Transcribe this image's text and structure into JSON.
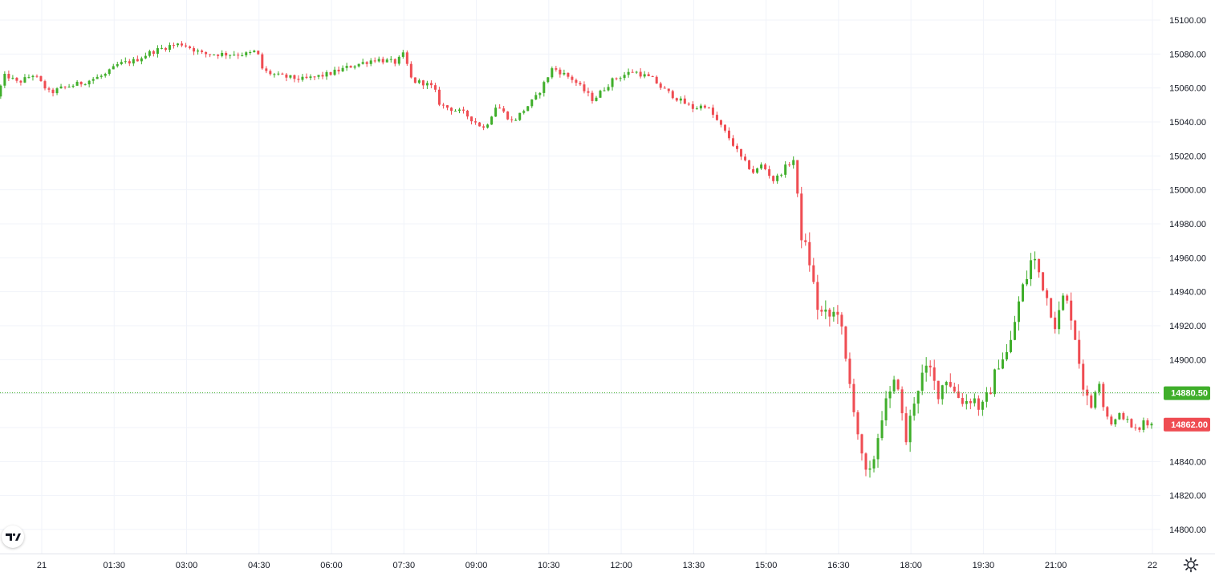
{
  "chart_data": {
    "type": "candlestick",
    "y_axis": {
      "ticks": [
        "15100.00",
        "15080.00",
        "15060.00",
        "15040.00",
        "15020.00",
        "15000.00",
        "14980.00",
        "14960.00",
        "14940.00",
        "14920.00",
        "14900.00",
        "14880.00",
        "14860.00",
        "14840.00",
        "14820.00",
        "14800.00"
      ],
      "tick_values": [
        15100,
        15080,
        15060,
        15040,
        15020,
        15000,
        14980,
        14960,
        14940,
        14920,
        14900,
        14880,
        14860,
        14840,
        14820,
        14800
      ],
      "range": [
        14790,
        15105
      ]
    },
    "x_axis": {
      "ticks": [
        "21",
        "01:30",
        "03:00",
        "04:30",
        "06:00",
        "07:30",
        "09:00",
        "10:30",
        "12:00",
        "13:30",
        "15:00",
        "16:30",
        "18:00",
        "19:30",
        "21:00",
        "22"
      ],
      "tick_minutes": [
        0,
        90,
        180,
        270,
        360,
        450,
        540,
        630,
        720,
        810,
        900,
        990,
        1080,
        1170,
        1260,
        1380
      ],
      "range_minutes": [
        -51,
        1397
      ]
    },
    "grid": true,
    "current_price": {
      "label": "14862.00",
      "value": 14862,
      "color": "#ef4c52"
    },
    "marker_price": {
      "label": "14880.50",
      "value": 14880.5,
      "color": "#3fae2a",
      "line_style": "dotted"
    },
    "colors": {
      "up": "#3fae2a",
      "down": "#ef4c52",
      "grid": "#f0f3fa",
      "axis_text": "#131722"
    },
    "keypoints": [
      [
        -51,
        15055,
        "s"
      ],
      [
        -40,
        15068,
        "s"
      ],
      [
        -25,
        15063,
        "s"
      ],
      [
        -5,
        15068,
        "s"
      ],
      [
        15,
        15057,
        "s"
      ],
      [
        30,
        15060,
        "s"
      ],
      [
        55,
        15063,
        "s"
      ],
      [
        85,
        15068,
        "s"
      ],
      [
        100,
        15074,
        "s"
      ],
      [
        120,
        15076,
        "s"
      ],
      [
        140,
        15081,
        "s"
      ],
      [
        165,
        15085,
        "s"
      ],
      [
        180,
        15086,
        "s"
      ],
      [
        205,
        15080,
        "s"
      ],
      [
        235,
        15080,
        "s"
      ],
      [
        262,
        15080,
        "s"
      ],
      [
        272,
        15082,
        "s"
      ],
      [
        280,
        15070,
        "s"
      ],
      [
        300,
        15067,
        "s"
      ],
      [
        330,
        15065,
        "s"
      ],
      [
        360,
        15068,
        "s"
      ],
      [
        390,
        15073,
        "s"
      ],
      [
        420,
        15077,
        "s"
      ],
      [
        445,
        15075,
        "s"
      ],
      [
        455,
        15080,
        "s"
      ],
      [
        465,
        15064,
        "s"
      ],
      [
        480,
        15063,
        "s"
      ],
      [
        492,
        15060,
        "s"
      ],
      [
        500,
        15050,
        "s"
      ],
      [
        530,
        15045,
        "s"
      ],
      [
        555,
        15036,
        "s"
      ],
      [
        570,
        15050,
        "s"
      ],
      [
        590,
        15040,
        "s"
      ],
      [
        620,
        15055,
        "s"
      ],
      [
        640,
        15072,
        "s"
      ],
      [
        665,
        15065,
        "s"
      ],
      [
        690,
        15053,
        "s"
      ],
      [
        715,
        15065,
        "s"
      ],
      [
        740,
        15070,
        "s"
      ],
      [
        765,
        15065,
        "s"
      ],
      [
        775,
        15060,
        "s"
      ],
      [
        800,
        15052,
        "s"
      ],
      [
        815,
        15048,
        "s"
      ],
      [
        830,
        15050,
        "s"
      ],
      [
        845,
        15040,
        "s"
      ],
      [
        860,
        15030,
        "s"
      ],
      [
        875,
        15018,
        "s"
      ],
      [
        890,
        15010,
        "s"
      ],
      [
        900,
        15015,
        "s"
      ],
      [
        915,
        15005,
        "s"
      ],
      [
        930,
        15014,
        "s"
      ],
      [
        940,
        15018,
        "s"
      ],
      [
        948,
        14975,
        "s"
      ],
      [
        958,
        14960,
        "s"
      ],
      [
        970,
        14928,
        "s"
      ],
      [
        985,
        14925,
        "s"
      ],
      [
        995,
        14930,
        "s"
      ],
      [
        1005,
        14895,
        "s"
      ],
      [
        1015,
        14870,
        "s"
      ],
      [
        1025,
        14838,
        "s"
      ],
      [
        1032,
        14828,
        "s"
      ],
      [
        1040,
        14845,
        "s"
      ],
      [
        1050,
        14870,
        "s"
      ],
      [
        1060,
        14880,
        "s"
      ],
      [
        1068,
        14890,
        "s"
      ],
      [
        1078,
        14850,
        "s"
      ],
      [
        1088,
        14875,
        "s"
      ],
      [
        1098,
        14890,
        "s"
      ],
      [
        1108,
        14895,
        "s"
      ],
      [
        1118,
        14880,
        "s"
      ],
      [
        1130,
        14890,
        "s"
      ],
      [
        1140,
        14880,
        "s"
      ],
      [
        1152,
        14875,
        "s"
      ],
      [
        1162,
        14878,
        "s"
      ],
      [
        1172,
        14870,
        "s"
      ],
      [
        1182,
        14880,
        "s"
      ],
      [
        1195,
        14900,
        "s"
      ],
      [
        1207,
        14905,
        "s"
      ],
      [
        1215,
        14925,
        "s"
      ],
      [
        1222,
        14940,
        "s"
      ],
      [
        1230,
        14950,
        "s"
      ],
      [
        1236,
        14962,
        "s"
      ],
      [
        1245,
        14950,
        "s"
      ],
      [
        1255,
        14935,
        "s"
      ],
      [
        1265,
        14920,
        "s"
      ],
      [
        1275,
        14938,
        "s"
      ],
      [
        1285,
        14925,
        "s"
      ],
      [
        1292,
        14905,
        "s"
      ],
      [
        1300,
        14882,
        "s"
      ],
      [
        1308,
        14870,
        "s"
      ],
      [
        1318,
        14890,
        "s"
      ],
      [
        1325,
        14870,
        "s"
      ],
      [
        1335,
        14862,
        "s"
      ],
      [
        1345,
        14868,
        "s"
      ],
      [
        1352,
        14865,
        "s"
      ],
      [
        1360,
        14860,
        "s"
      ],
      [
        1370,
        14858,
        "s"
      ],
      [
        1375,
        14866,
        "s"
      ],
      [
        1380,
        14862,
        "s"
      ]
    ]
  },
  "ui": {
    "logo_text": "TV",
    "settings_icon": "gear-icon"
  }
}
